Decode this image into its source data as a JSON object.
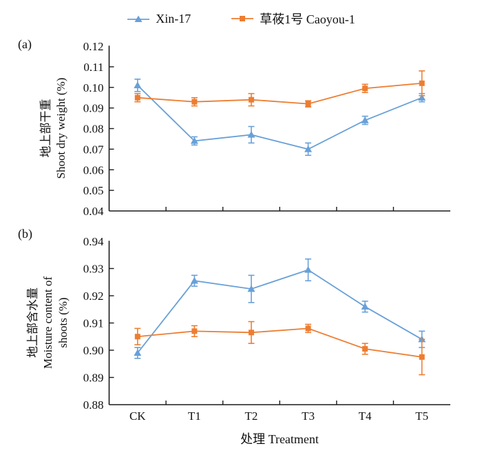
{
  "legend": {
    "items": [
      {
        "label": "Xin-17",
        "marker": "triangle",
        "color": "#68A0D8"
      },
      {
        "label": "草莜1号 Caoyou-1",
        "marker": "square",
        "color": "#ED7D31"
      }
    ]
  },
  "xaxis": {
    "title": "处理 Treatment",
    "categories": [
      "CK",
      "T1",
      "T2",
      "T3",
      "T4",
      "T5"
    ]
  },
  "chart_data": [
    {
      "type": "line",
      "panel_label": "(a)",
      "categories": [
        "CK",
        "T1",
        "T2",
        "T3",
        "T4",
        "T5"
      ],
      "ylabel_lines": [
        "地上部干重",
        "Shoot dry weight (%)"
      ],
      "ylim": [
        0.04,
        0.12
      ],
      "yticks": [
        0.04,
        0.05,
        0.06,
        0.07,
        0.08,
        0.09,
        0.1,
        0.11,
        0.12
      ],
      "grid": false,
      "error_bars": true,
      "series": [
        {
          "name": "Xin-17",
          "color": "#68A0D8",
          "marker": "triangle",
          "values": [
            0.101,
            0.074,
            0.077,
            0.07,
            0.084,
            0.095
          ],
          "errors": [
            0.003,
            0.002,
            0.004,
            0.003,
            0.002,
            0.002
          ]
        },
        {
          "name": "草莜1号 Caoyou-1",
          "color": "#ED7D31",
          "marker": "square",
          "values": [
            0.095,
            0.093,
            0.094,
            0.092,
            0.0995,
            0.102
          ],
          "errors": [
            0.002,
            0.002,
            0.003,
            0.0015,
            0.002,
            0.006
          ]
        }
      ]
    },
    {
      "type": "line",
      "panel_label": "(b)",
      "categories": [
        "CK",
        "T1",
        "T2",
        "T3",
        "T4",
        "T5"
      ],
      "ylabel_lines": [
        "地上部含水量",
        "Moisture content of",
        "shoots (%)"
      ],
      "ylim": [
        0.88,
        0.94
      ],
      "yticks": [
        0.88,
        0.89,
        0.9,
        0.91,
        0.92,
        0.93,
        0.94
      ],
      "grid": false,
      "error_bars": true,
      "series": [
        {
          "name": "Xin-17",
          "color": "#68A0D8",
          "marker": "triangle",
          "values": [
            0.899,
            0.9255,
            0.9225,
            0.9295,
            0.916,
            0.904
          ],
          "errors": [
            0.002,
            0.002,
            0.005,
            0.004,
            0.002,
            0.003
          ]
        },
        {
          "name": "草莜1号 Caoyou-1",
          "color": "#ED7D31",
          "marker": "square",
          "values": [
            0.905,
            0.907,
            0.9065,
            0.908,
            0.9005,
            0.8975
          ],
          "errors": [
            0.003,
            0.002,
            0.004,
            0.0015,
            0.002,
            0.0065
          ]
        }
      ]
    }
  ]
}
